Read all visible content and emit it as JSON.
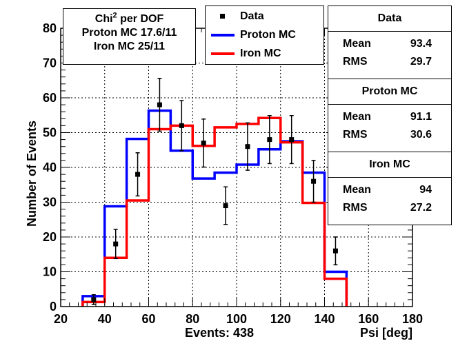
{
  "chart_data": {
    "type": "histogram",
    "xlabel": "Psi  [deg]",
    "ylabel": "Number of Events",
    "xlim": [
      20,
      180
    ],
    "ylim": [
      0,
      80
    ],
    "x_ticks": [
      "20",
      "40",
      "60",
      "80",
      "100",
      "120",
      "140",
      "160",
      "180"
    ],
    "y_ticks": [
      "0",
      "10",
      "20",
      "30",
      "40",
      "50",
      "60",
      "70",
      "80"
    ],
    "grid": true,
    "bin_edges": [
      30,
      40,
      50,
      60,
      70,
      80,
      90,
      100,
      110,
      120,
      130,
      140,
      150
    ],
    "series": [
      {
        "name": "Data",
        "kind": "points",
        "color": "#000000",
        "x": [
          35,
          45,
          55,
          65,
          75,
          85,
          95,
          105,
          115,
          125,
          135,
          145
        ],
        "y": [
          2,
          18,
          38,
          58,
          52,
          47,
          29,
          46,
          48,
          48,
          36,
          16
        ],
        "err": [
          1.4,
          4.2,
          6.2,
          7.6,
          7.2,
          6.9,
          5.4,
          6.8,
          6.9,
          6.9,
          6.0,
          4.0
        ]
      },
      {
        "name": "Proton MC",
        "kind": "step",
        "color": "#0000ff",
        "values": [
          3,
          28.8,
          48.2,
          56.3,
          44.8,
          36.8,
          38.5,
          40.8,
          45.2,
          47.5,
          38.5,
          10
        ]
      },
      {
        "name": "Iron MC",
        "kind": "step",
        "color": "#ff0000",
        "values": [
          1.3,
          14,
          30.5,
          51,
          52,
          46.2,
          51.5,
          52.5,
          54.2,
          47.2,
          29.8,
          8
        ]
      }
    ],
    "chi2_box": {
      "title_prefix": "Chi",
      "title_sup": "2",
      "title_suffix": " per DOF",
      "proton": "Proton MC 17.6/11",
      "iron": "Iron MC 25/11"
    },
    "legend": {
      "data_label": "Data",
      "proton_label": "Proton MC",
      "iron_label": "Iron MC"
    },
    "stats": [
      {
        "title": "Data",
        "mean_label": "Mean",
        "mean": "93.4",
        "rms_label": "RMS",
        "rms": "29.7"
      },
      {
        "title": "Proton MC",
        "mean_label": "Mean",
        "mean": "91.1",
        "rms_label": "RMS",
        "rms": "30.6"
      },
      {
        "title": "Iron MC",
        "mean_label": "Mean",
        "mean": "94",
        "rms_label": "RMS",
        "rms": "27.2"
      }
    ],
    "footer": "Events: 438"
  }
}
